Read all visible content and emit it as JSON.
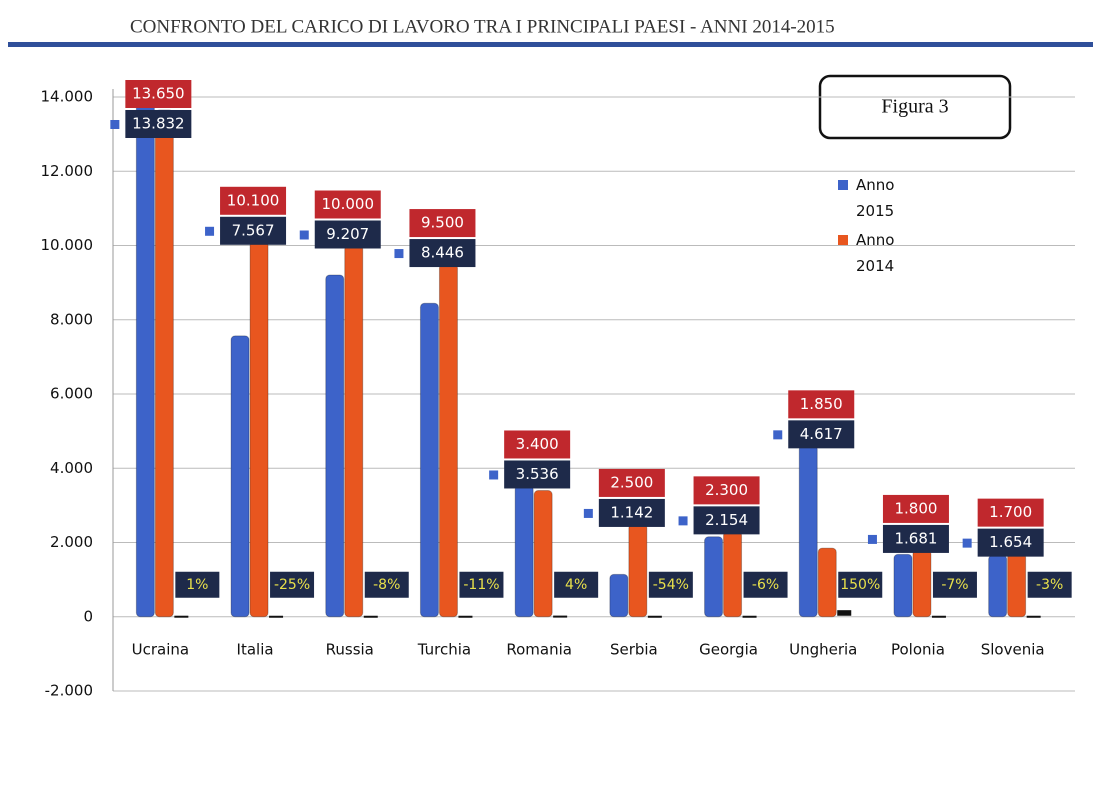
{
  "chart_data": {
    "type": "bar",
    "title": "CONFRONTO DEL CARICO DI LAVORO TRA I PRINCIPALI PAESI - ANNI 2014-2015",
    "annotation": "Figura 3",
    "categories": [
      "Ucraina",
      "Italia",
      "Russia",
      "Turchia",
      "Romania",
      "Serbia",
      "Georgia",
      "Ungheria",
      "Polonia",
      "Slovenia"
    ],
    "series": [
      {
        "name": "Anno 2015",
        "color": "#3d63c9",
        "values": [
          13832,
          7567,
          9207,
          8446,
          3536,
          1142,
          2154,
          4617,
          1681,
          1654
        ],
        "value_labels": [
          "13.832",
          "7.567",
          "9.207",
          "8.446",
          "3.536",
          "1.142",
          "2.154",
          "4.617",
          "1.681",
          "1.654"
        ]
      },
      {
        "name": "Anno 2014",
        "color": "#e8561f",
        "values": [
          13650,
          10100,
          10000,
          9500,
          3400,
          2500,
          2300,
          1850,
          1800,
          1700
        ],
        "value_labels": [
          "13.650",
          "10.100",
          "10.000",
          "9.500",
          "3.400",
          "2.500",
          "2.300",
          "1.850",
          "1.800",
          "1.700"
        ]
      },
      {
        "color": "#111111",
        "values": [
          1,
          -25,
          -8,
          -11,
          4,
          -54,
          -6,
          150,
          -7,
          -3
        ],
        "value_labels": [
          "1%",
          "-25%",
          "-8%",
          "-11%",
          "4%",
          "-54%",
          "-6%",
          "150%",
          "-7%",
          "-3%"
        ]
      }
    ],
    "ylim": [
      -2000,
      14000
    ],
    "yticks": [
      {
        "value": -2000,
        "label": "-2.000"
      },
      0,
      {
        "value": 2000,
        "label": "2.000"
      },
      {
        "value": 4000,
        "label": "4.000"
      },
      {
        "value": 6000,
        "label": "6.000"
      },
      {
        "value": 8000,
        "label": "8.000"
      },
      {
        "value": 10000,
        "label": "10.000"
      },
      {
        "value": 12000,
        "label": "12.000"
      },
      {
        "value": 14000,
        "label": "14.000"
      }
    ],
    "grid": true
  }
}
